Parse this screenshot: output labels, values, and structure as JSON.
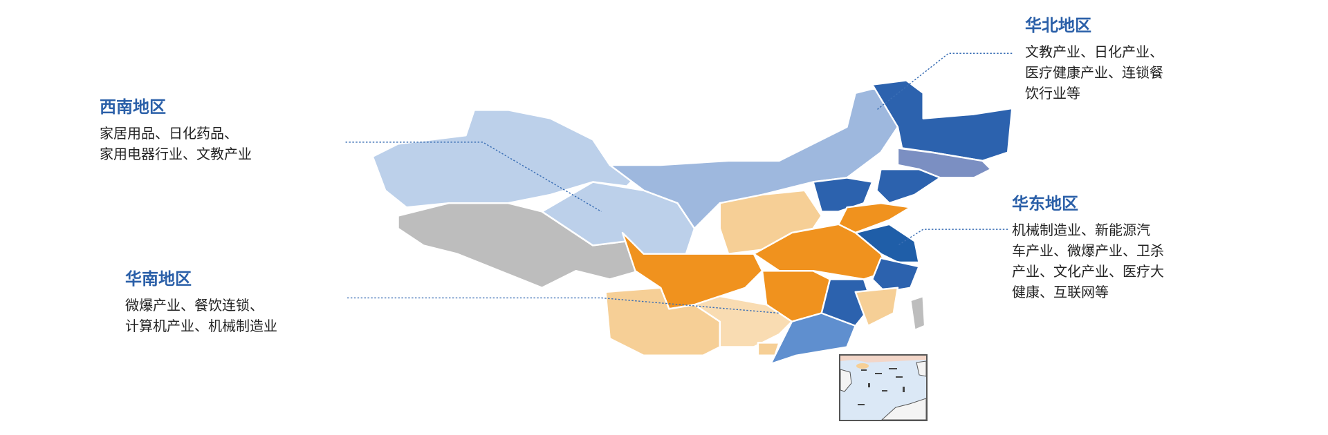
{
  "regions": [
    {
      "title": "华北地区",
      "lines": [
        "文教产业、日化产业、",
        "医疗健康产业、连锁餐",
        "饮行业等"
      ]
    },
    {
      "title": "西南地区",
      "lines": [
        "家居用品、日化药品、",
        "家用电器行业、文教产业"
      ]
    },
    {
      "title": "华东地区",
      "lines": [
        "机械制造业、新能源汽",
        "车产业、微爆产业、卫杀",
        "产业、文化产业、医疗大",
        "健康、互联网等"
      ]
    },
    {
      "title": "华南地区",
      "lines": [
        "微爆产业、餐饮连锁、",
        "计算机产业、机械制造业"
      ]
    }
  ],
  "colors": {
    "title": "#2a5fa8",
    "light_blue": "#bcd0ea",
    "mid_blue": "#9eb8de",
    "dark_blue": "#2c62ae",
    "slate_blue": "#7b8fc2",
    "orange": "#f0921e",
    "light_orange": "#f6cf96",
    "gray": "#bdbdbd"
  },
  "inset": "south-china-sea-inset-map"
}
